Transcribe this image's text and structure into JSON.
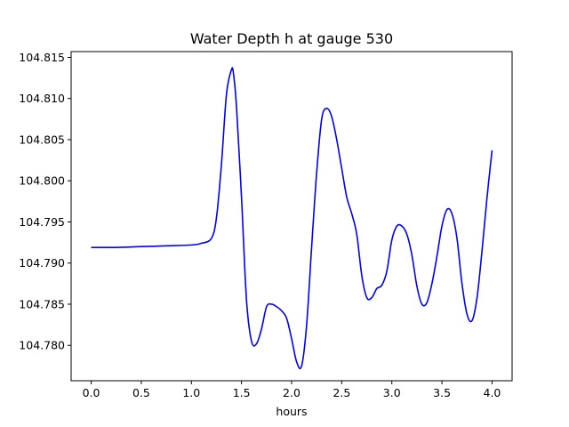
{
  "chart_data": {
    "type": "line",
    "title": "Water Depth h at gauge 530",
    "xlabel": "hours",
    "ylabel": "",
    "xlim": [
      -0.2,
      4.2
    ],
    "ylim": [
      104.7757,
      104.8157
    ],
    "xticks": [
      0.0,
      0.5,
      1.0,
      1.5,
      2.0,
      2.5,
      3.0,
      3.5,
      4.0
    ],
    "xtick_labels": [
      "0.0",
      "0.5",
      "1.0",
      "1.5",
      "2.0",
      "2.5",
      "3.0",
      "3.5",
      "4.0"
    ],
    "yticks": [
      104.78,
      104.785,
      104.79,
      104.795,
      104.8,
      104.805,
      104.81,
      104.815
    ],
    "ytick_labels": [
      "104.780",
      "104.785",
      "104.790",
      "104.795",
      "104.800",
      "104.805",
      "104.810",
      "104.815"
    ],
    "grid": false,
    "series": [
      {
        "color": "#0000ff",
        "x": [
          0.0,
          0.25,
          0.5,
          0.75,
          1.0,
          1.1,
          1.2,
          1.25,
          1.3,
          1.35,
          1.4,
          1.42,
          1.45,
          1.5,
          1.55,
          1.6,
          1.65,
          1.7,
          1.75,
          1.8,
          1.85,
          1.9,
          1.95,
          2.0,
          2.05,
          2.1,
          2.15,
          2.2,
          2.25,
          2.3,
          2.35,
          2.4,
          2.45,
          2.5,
          2.55,
          2.6,
          2.65,
          2.7,
          2.75,
          2.8,
          2.85,
          2.9,
          2.95,
          3.0,
          3.05,
          3.1,
          3.15,
          3.2,
          3.25,
          3.3,
          3.35,
          3.4,
          3.45,
          3.5,
          3.55,
          3.6,
          3.65,
          3.7,
          3.75,
          3.8,
          3.85,
          3.9,
          3.95,
          4.0
        ],
        "y": [
          104.7919,
          104.7919,
          104.792,
          104.7921,
          104.7922,
          104.7924,
          104.793,
          104.7955,
          104.802,
          104.8105,
          104.8135,
          104.813,
          104.809,
          104.798,
          104.7855,
          104.7805,
          104.7802,
          104.782,
          104.7847,
          104.785,
          104.7847,
          104.7842,
          104.7833,
          104.7808,
          104.778,
          104.7775,
          104.7825,
          104.792,
          104.801,
          104.8075,
          104.8088,
          104.8078,
          104.805,
          104.8015,
          104.798,
          104.796,
          104.7935,
          104.7885,
          104.7858,
          104.7858,
          104.7869,
          104.7873,
          104.789,
          104.7928,
          104.7945,
          104.7945,
          104.7935,
          104.791,
          104.7872,
          104.785,
          104.7852,
          104.7875,
          104.7908,
          104.7945,
          104.7965,
          104.796,
          104.793,
          104.7875,
          104.7838,
          104.783,
          104.7858,
          104.7915,
          104.798,
          104.8037
        ]
      }
    ]
  }
}
